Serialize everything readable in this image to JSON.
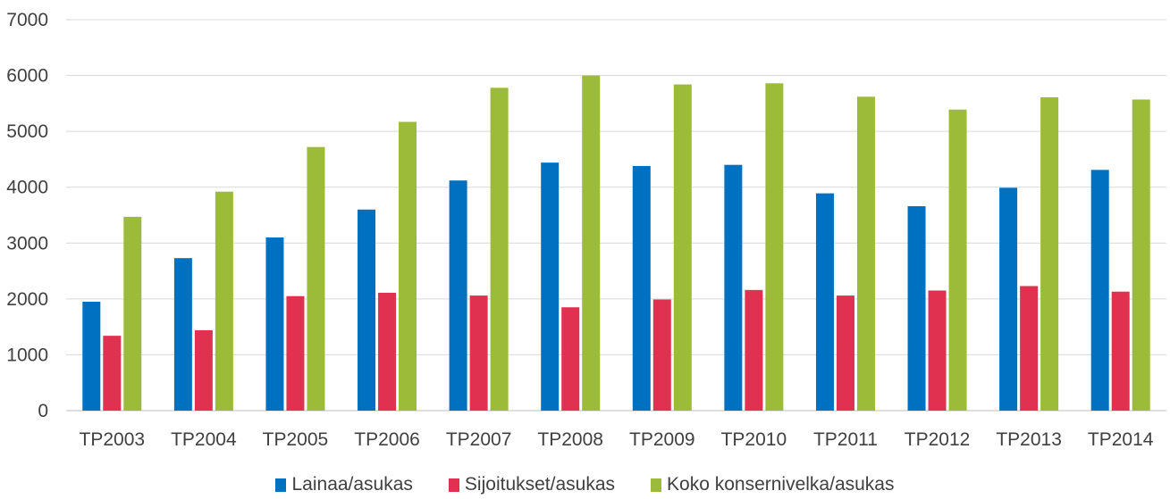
{
  "chart_data": {
    "type": "bar",
    "categories": [
      "TP2003",
      "TP2004",
      "TP2005",
      "TP2006",
      "TP2007",
      "TP2008",
      "TP2009",
      "TP2010",
      "TP2011",
      "TP2012",
      "TP2013",
      "TP2014"
    ],
    "series": [
      {
        "name": "Lainaa/asukas",
        "color": "#0070C0",
        "values": [
          1950,
          2730,
          3100,
          3600,
          4120,
          4440,
          4380,
          4400,
          3890,
          3660,
          3990,
          4310
        ]
      },
      {
        "name": "Sijoitukset/asukas",
        "color": "#E03250",
        "values": [
          1340,
          1440,
          2050,
          2110,
          2060,
          1850,
          1990,
          2160,
          2060,
          2150,
          2230,
          2130
        ]
      },
      {
        "name": "Koko konsernivelka/asukas",
        "color": "#9BBB39",
        "values": [
          3470,
          3920,
          4720,
          5170,
          5780,
          6000,
          5840,
          5860,
          5620,
          5390,
          5610,
          5570
        ]
      }
    ],
    "yticks": [
      0,
      1000,
      2000,
      3000,
      4000,
      5000,
      6000,
      7000
    ],
    "ylim": [
      0,
      7000
    ],
    "grid": true,
    "legend_position": "bottom",
    "title": "",
    "xlabel": "",
    "ylabel": ""
  }
}
